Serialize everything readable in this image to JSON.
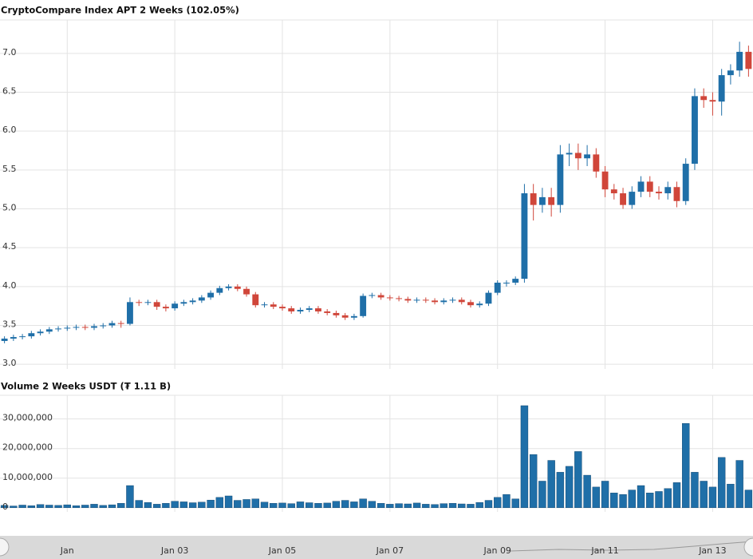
{
  "chart_data": [
    {
      "type": "candlestick",
      "title": "CryptoCompare Index APT 2 Weeks (102.05%)",
      "categories": [
        null,
        null,
        null,
        null,
        null,
        null,
        null,
        "Jan",
        null,
        null,
        null,
        null,
        null,
        null,
        null,
        null,
        null,
        null,
        null,
        "Jan 03",
        null,
        null,
        null,
        null,
        null,
        null,
        null,
        null,
        null,
        null,
        null,
        "Jan 05",
        null,
        null,
        null,
        null,
        null,
        null,
        null,
        null,
        null,
        null,
        null,
        "Jan 07",
        null,
        null,
        null,
        null,
        null,
        null,
        null,
        null,
        null,
        null,
        null,
        "Jan 09",
        null,
        null,
        null,
        null,
        null,
        null,
        null,
        null,
        null,
        null,
        null,
        "Jan 11",
        null,
        null,
        null,
        null,
        null,
        null,
        null,
        null,
        null,
        null,
        null,
        "Jan 13",
        null,
        null,
        null,
        null
      ],
      "open": [
        3.3,
        3.33,
        3.35,
        3.36,
        3.4,
        3.42,
        3.45,
        3.46,
        3.47,
        3.48,
        3.47,
        3.49,
        3.5,
        3.53,
        3.52,
        3.8,
        3.79,
        3.8,
        3.74,
        3.72,
        3.78,
        3.8,
        3.82,
        3.86,
        3.92,
        3.98,
        4.0,
        3.97,
        3.9,
        3.76,
        3.77,
        3.74,
        3.72,
        3.68,
        3.7,
        3.72,
        3.68,
        3.66,
        3.63,
        3.6,
        3.62,
        3.88,
        3.89,
        3.86,
        3.85,
        3.84,
        3.82,
        3.83,
        3.82,
        3.8,
        3.82,
        3.83,
        3.8,
        3.76,
        3.78,
        3.92,
        4.05,
        4.05,
        4.1,
        5.2,
        5.05,
        5.15,
        5.05,
        5.7,
        5.72,
        5.65,
        5.7,
        5.48,
        5.25,
        5.2,
        5.05,
        5.22,
        5.35,
        5.22,
        5.2,
        5.28,
        5.1,
        5.58,
        6.45,
        6.4,
        6.38,
        6.72,
        6.78,
        7.02
      ],
      "high": [
        3.36,
        3.38,
        3.39,
        3.43,
        3.45,
        3.48,
        3.49,
        3.5,
        3.51,
        3.51,
        3.52,
        3.53,
        3.56,
        3.56,
        3.86,
        3.83,
        3.83,
        3.83,
        3.77,
        3.81,
        3.83,
        3.85,
        3.89,
        3.95,
        4.01,
        4.03,
        4.03,
        4.0,
        3.93,
        3.8,
        3.8,
        3.77,
        3.75,
        3.73,
        3.75,
        3.75,
        3.71,
        3.69,
        3.66,
        3.65,
        3.91,
        3.92,
        3.92,
        3.89,
        3.88,
        3.87,
        3.86,
        3.86,
        3.85,
        3.85,
        3.86,
        3.86,
        3.83,
        3.81,
        3.95,
        4.08,
        4.08,
        4.13,
        5.32,
        5.32,
        5.27,
        5.27,
        5.82,
        5.84,
        5.84,
        5.82,
        5.78,
        5.55,
        5.32,
        5.27,
        5.29,
        5.42,
        5.42,
        5.29,
        5.35,
        5.35,
        5.65,
        6.55,
        6.55,
        6.5,
        6.8,
        6.86,
        7.15,
        7.1
      ],
      "low": [
        3.27,
        3.3,
        3.32,
        3.33,
        3.37,
        3.39,
        3.42,
        3.43,
        3.44,
        3.44,
        3.44,
        3.46,
        3.47,
        3.47,
        3.5,
        3.75,
        3.76,
        3.7,
        3.68,
        3.69,
        3.75,
        3.77,
        3.79,
        3.83,
        3.89,
        3.95,
        3.94,
        3.87,
        3.73,
        3.73,
        3.71,
        3.69,
        3.65,
        3.65,
        3.67,
        3.65,
        3.63,
        3.6,
        3.57,
        3.57,
        3.6,
        3.85,
        3.83,
        3.82,
        3.81,
        3.79,
        3.79,
        3.79,
        3.77,
        3.77,
        3.79,
        3.77,
        3.73,
        3.73,
        3.75,
        3.89,
        4.0,
        4.02,
        4.05,
        4.85,
        4.95,
        4.9,
        4.95,
        5.55,
        5.5,
        5.55,
        5.4,
        5.15,
        5.12,
        5.0,
        5.0,
        5.15,
        5.15,
        5.12,
        5.12,
        5.02,
        5.05,
        5.5,
        6.3,
        6.2,
        6.2,
        6.6,
        6.7,
        6.7
      ],
      "close": [
        3.33,
        3.35,
        3.36,
        3.4,
        3.42,
        3.45,
        3.46,
        3.47,
        3.48,
        3.47,
        3.49,
        3.5,
        3.53,
        3.52,
        3.8,
        3.79,
        3.8,
        3.74,
        3.72,
        3.78,
        3.8,
        3.82,
        3.86,
        3.92,
        3.98,
        4.0,
        3.97,
        3.9,
        3.76,
        3.77,
        3.74,
        3.72,
        3.68,
        3.7,
        3.72,
        3.68,
        3.66,
        3.63,
        3.6,
        3.62,
        3.88,
        3.89,
        3.86,
        3.85,
        3.84,
        3.82,
        3.83,
        3.82,
        3.8,
        3.82,
        3.83,
        3.8,
        3.76,
        3.78,
        3.92,
        4.05,
        4.05,
        4.1,
        5.2,
        5.05,
        5.15,
        5.05,
        5.7,
        5.72,
        5.65,
        5.7,
        5.48,
        5.25,
        5.2,
        5.05,
        5.22,
        5.35,
        5.22,
        5.2,
        5.28,
        5.1,
        5.58,
        6.45,
        6.4,
        6.38,
        6.72,
        6.78,
        7.02,
        6.8
      ],
      "up_color": "#1f6fa8",
      "down_color": "#d0463a",
      "ylim": [
        2.94,
        7.43
      ],
      "yticks": [
        {
          "value": 3,
          "label": "3.0"
        },
        3.5,
        {
          "value": 4,
          "label": "4.0"
        },
        4.5,
        {
          "value": 5,
          "label": "5.0"
        },
        5.5,
        {
          "value": 6,
          "label": "6.0"
        },
        6.5,
        {
          "value": 7,
          "label": "7.0"
        }
      ],
      "grid": true
    },
    {
      "type": "bar",
      "title": "Volume 2 Weeks USDT (₮ 1.11 B)",
      "color": "#1f6fa8",
      "values": [
        800000,
        600000,
        900000,
        700000,
        1100000,
        900000,
        800000,
        1000000,
        700000,
        900000,
        1200000,
        800000,
        1000000,
        1500000,
        7500000,
        2500000,
        1800000,
        1200000,
        1500000,
        2200000,
        2000000,
        1700000,
        1900000,
        2600000,
        3500000,
        4000000,
        2500000,
        2800000,
        3000000,
        1900000,
        1500000,
        1600000,
        1400000,
        2000000,
        1700000,
        1500000,
        1600000,
        2200000,
        2500000,
        2000000,
        3000000,
        2200000,
        1500000,
        1200000,
        1400000,
        1300000,
        1600000,
        1200000,
        1100000,
        1400000,
        1500000,
        1300000,
        1200000,
        1800000,
        2500000,
        3500000,
        4500000,
        3000000,
        34500000,
        18000000,
        9000000,
        16000000,
        12000000,
        14000000,
        19000000,
        11000000,
        7000000,
        9000000,
        5000000,
        4500000,
        6000000,
        7500000,
        5000000,
        5500000,
        6500000,
        8500000,
        28500000,
        12000000,
        9000000,
        7000000,
        17000000,
        8000000,
        16000000,
        6000000
      ],
      "ylim": [
        -1400000,
        38000000
      ],
      "yticks": [
        0,
        {
          "value": 10000000,
          "label": "10,000,000"
        },
        {
          "value": 20000000,
          "label": "20,000,000"
        },
        {
          "value": 30000000,
          "label": "30,000,000"
        }
      ],
      "grid": true
    }
  ]
}
